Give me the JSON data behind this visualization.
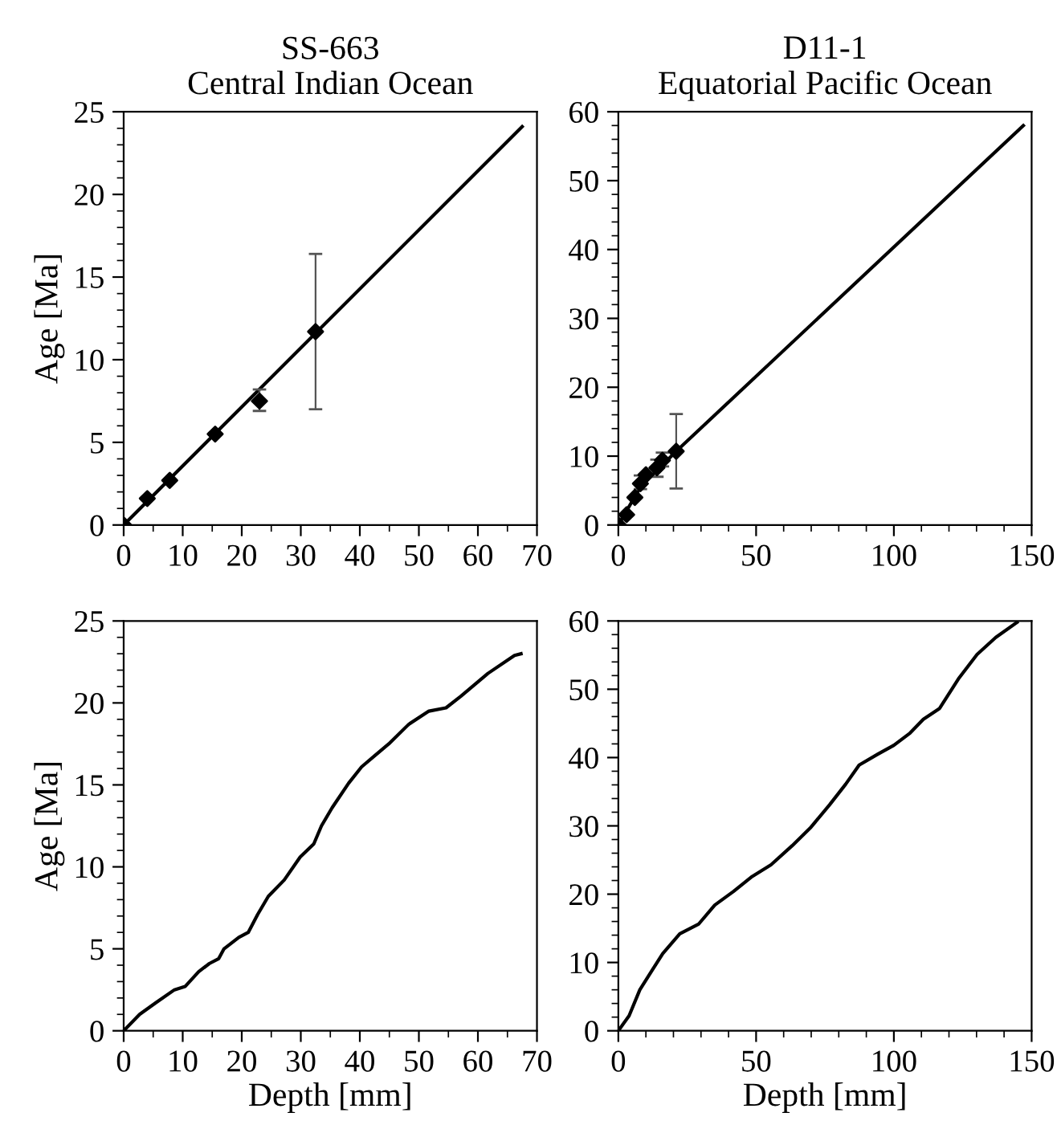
{
  "chart_data": [
    {
      "type": "scatter",
      "title": "SS-663\nCentral Indian Ocean",
      "ylabel": "Age [Ma]",
      "xlim": [
        0,
        70
      ],
      "ylim": [
        0,
        25
      ],
      "xticks": [
        0,
        {
          "value": 5,
          "label": null
        },
        10,
        {
          "value": 15,
          "label": null
        },
        20,
        {
          "value": 25,
          "label": null
        },
        30,
        {
          "value": 35,
          "label": null
        },
        40,
        {
          "value": 45,
          "label": null
        },
        50,
        {
          "value": 55,
          "label": null
        },
        60,
        {
          "value": 65,
          "label": null
        },
        70
      ],
      "yticks": [
        0,
        {
          "value": 1,
          "label": null
        },
        {
          "value": 2,
          "label": null
        },
        {
          "value": 3,
          "label": null
        },
        {
          "value": 4,
          "label": null
        },
        5,
        {
          "value": 6,
          "label": null
        },
        {
          "value": 7,
          "label": null
        },
        {
          "value": 8,
          "label": null
        },
        {
          "value": 9,
          "label": null
        },
        10,
        {
          "value": 11,
          "label": null
        },
        {
          "value": 12,
          "label": null
        },
        {
          "value": 13,
          "label": null
        },
        {
          "value": 14,
          "label": null
        },
        15,
        {
          "value": 16,
          "label": null
        },
        {
          "value": 17,
          "label": null
        },
        {
          "value": 18,
          "label": null
        },
        {
          "value": 19,
          "label": null
        },
        20,
        {
          "value": 21,
          "label": null
        },
        {
          "value": 22,
          "label": null
        },
        {
          "value": 23,
          "label": null
        },
        {
          "value": 24,
          "label": null
        },
        25
      ],
      "series": [
        {
          "type": "line",
          "color": "#000000",
          "x": [
            0,
            67.5
          ],
          "values": [
            0,
            24.1
          ]
        },
        {
          "type": "scatter",
          "marker": "diamond",
          "color": "#000000",
          "x": [
            0,
            4,
            7.8,
            15.5,
            23,
            32.5
          ],
          "values": [
            0,
            1.6,
            2.7,
            5.5,
            7.5,
            11.7
          ],
          "errors": [
            null,
            null,
            null,
            null,
            [
              6.9,
              8.2
            ],
            [
              7.0,
              16.4
            ]
          ]
        }
      ]
    },
    {
      "type": "scatter",
      "title": "D11-1\nEquatorial Pacific Ocean",
      "xlim": [
        0,
        150
      ],
      "ylim": [
        0,
        60
      ],
      "xticks": [
        0,
        {
          "value": 10,
          "label": null
        },
        {
          "value": 20,
          "label": null
        },
        {
          "value": 30,
          "label": null
        },
        {
          "value": 40,
          "label": null
        },
        50,
        {
          "value": 60,
          "label": null
        },
        {
          "value": 70,
          "label": null
        },
        {
          "value": 80,
          "label": null
        },
        {
          "value": 90,
          "label": null
        },
        100,
        {
          "value": 110,
          "label": null
        },
        {
          "value": 120,
          "label": null
        },
        {
          "value": 130,
          "label": null
        },
        {
          "value": 140,
          "label": null
        },
        150
      ],
      "yticks": [
        0,
        {
          "value": 2,
          "label": null
        },
        {
          "value": 4,
          "label": null
        },
        {
          "value": 6,
          "label": null
        },
        {
          "value": 8,
          "label": null
        },
        10,
        {
          "value": 12,
          "label": null
        },
        {
          "value": 14,
          "label": null
        },
        {
          "value": 16,
          "label": null
        },
        {
          "value": 18,
          "label": null
        },
        20,
        {
          "value": 22,
          "label": null
        },
        {
          "value": 24,
          "label": null
        },
        {
          "value": 26,
          "label": null
        },
        {
          "value": 28,
          "label": null
        },
        30,
        {
          "value": 32,
          "label": null
        },
        {
          "value": 34,
          "label": null
        },
        {
          "value": 36,
          "label": null
        },
        {
          "value": 38,
          "label": null
        },
        40,
        {
          "value": 42,
          "label": null
        },
        {
          "value": 44,
          "label": null
        },
        {
          "value": 46,
          "label": null
        },
        {
          "value": 48,
          "label": null
        },
        50,
        {
          "value": 52,
          "label": null
        },
        {
          "value": 54,
          "label": null
        },
        {
          "value": 56,
          "label": null
        },
        {
          "value": 58,
          "label": null
        },
        60
      ],
      "series": [
        {
          "type": "line",
          "color": "#000000",
          "x": [
            0,
            8,
            21,
            147
          ],
          "values": [
            0,
            5.5,
            10.7,
            58
          ]
        },
        {
          "type": "scatter",
          "marker": "diamond",
          "color": "#000000",
          "x": [
            0,
            3,
            6,
            8,
            10,
            14,
            16,
            21
          ],
          "values": [
            0,
            1.5,
            4,
            6,
            7.3,
            8.3,
            9.4,
            10.7
          ],
          "errors": [
            null,
            null,
            null,
            [
              5.2,
              7.2
            ],
            null,
            [
              7.0,
              9.5
            ],
            [
              8.5,
              10.5
            ],
            [
              5.3,
              16.1
            ]
          ]
        }
      ]
    },
    {
      "type": "line",
      "ylabel": "Age [Ma]",
      "xlabel": "Depth [mm]",
      "xlim": [
        0,
        70
      ],
      "ylim": [
        0,
        25
      ],
      "xticks": [
        0,
        {
          "value": 5,
          "label": null
        },
        10,
        {
          "value": 15,
          "label": null
        },
        20,
        {
          "value": 25,
          "label": null
        },
        30,
        {
          "value": 35,
          "label": null
        },
        40,
        {
          "value": 45,
          "label": null
        },
        50,
        {
          "value": 55,
          "label": null
        },
        60,
        {
          "value": 65,
          "label": null
        },
        70
      ],
      "yticks": [
        0,
        {
          "value": 1,
          "label": null
        },
        {
          "value": 2,
          "label": null
        },
        {
          "value": 3,
          "label": null
        },
        {
          "value": 4,
          "label": null
        },
        5,
        {
          "value": 6,
          "label": null
        },
        {
          "value": 7,
          "label": null
        },
        {
          "value": 8,
          "label": null
        },
        {
          "value": 9,
          "label": null
        },
        10,
        {
          "value": 11,
          "label": null
        },
        {
          "value": 12,
          "label": null
        },
        {
          "value": 13,
          "label": null
        },
        {
          "value": 14,
          "label": null
        },
        15,
        {
          "value": 16,
          "label": null
        },
        {
          "value": 17,
          "label": null
        },
        {
          "value": 18,
          "label": null
        },
        {
          "value": 19,
          "label": null
        },
        20,
        {
          "value": 21,
          "label": null
        },
        {
          "value": 22,
          "label": null
        },
        {
          "value": 23,
          "label": null
        },
        {
          "value": 24,
          "label": null
        },
        25
      ],
      "series": [
        {
          "color": "#000000",
          "x": [
            0,
            2.7,
            5.4,
            8.6,
            10.4,
            12.7,
            14.5,
            16.1,
            17.0,
            19.5,
            21.1,
            22.7,
            24.5,
            27.2,
            29.9,
            32.2,
            33.5,
            35.3,
            38.1,
            40.3,
            42.6,
            44.9,
            48.3,
            51.7,
            54.6,
            57.1,
            59.4,
            61.7,
            66.2,
            67.3
          ],
          "values": [
            0,
            1.0,
            1.7,
            2.5,
            2.7,
            3.6,
            4.1,
            4.4,
            5.0,
            5.7,
            6.0,
            7.1,
            8.2,
            9.2,
            10.6,
            11.4,
            12.5,
            13.6,
            15.1,
            16.1,
            16.8,
            17.5,
            18.7,
            19.5,
            19.7,
            20.4,
            21.1,
            21.8,
            22.9,
            23.0
          ]
        }
      ]
    },
    {
      "type": "line",
      "xlabel": "Depth [mm]",
      "xlim": [
        0,
        150
      ],
      "ylim": [
        0,
        60
      ],
      "xticks": [
        0,
        {
          "value": 10,
          "label": null
        },
        {
          "value": 20,
          "label": null
        },
        {
          "value": 30,
          "label": null
        },
        {
          "value": 40,
          "label": null
        },
        50,
        {
          "value": 60,
          "label": null
        },
        {
          "value": 70,
          "label": null
        },
        {
          "value": 80,
          "label": null
        },
        {
          "value": 90,
          "label": null
        },
        100,
        {
          "value": 110,
          "label": null
        },
        {
          "value": 120,
          "label": null
        },
        {
          "value": 130,
          "label": null
        },
        {
          "value": 140,
          "label": null
        },
        150
      ],
      "yticks": [
        0,
        {
          "value": 2,
          "label": null
        },
        {
          "value": 4,
          "label": null
        },
        {
          "value": 6,
          "label": null
        },
        {
          "value": 8,
          "label": null
        },
        10,
        {
          "value": 12,
          "label": null
        },
        {
          "value": 14,
          "label": null
        },
        {
          "value": 16,
          "label": null
        },
        {
          "value": 18,
          "label": null
        },
        20,
        {
          "value": 22,
          "label": null
        },
        {
          "value": 24,
          "label": null
        },
        {
          "value": 26,
          "label": null
        },
        {
          "value": 28,
          "label": null
        },
        30,
        {
          "value": 32,
          "label": null
        },
        {
          "value": 34,
          "label": null
        },
        {
          "value": 36,
          "label": null
        },
        {
          "value": 38,
          "label": null
        },
        40,
        {
          "value": 42,
          "label": null
        },
        {
          "value": 44,
          "label": null
        },
        {
          "value": 46,
          "label": null
        },
        {
          "value": 48,
          "label": null
        },
        50,
        {
          "value": 52,
          "label": null
        },
        {
          "value": 54,
          "label": null
        },
        {
          "value": 56,
          "label": null
        },
        {
          "value": 58,
          "label": null
        },
        60
      ],
      "series": [
        {
          "color": "#000000",
          "x": [
            0,
            3.9,
            7.8,
            11.7,
            16.1,
            22.3,
            29.1,
            35,
            41.8,
            48.6,
            55.4,
            63.1,
            69.9,
            76.7,
            82.5,
            87.4,
            94.2,
            100,
            105.9,
            110.7,
            116.6,
            123.4,
            130.2,
            137,
            144.7
          ],
          "values": [
            0,
            2.2,
            6.0,
            8.5,
            11.3,
            14.2,
            15.6,
            18.4,
            20.4,
            22.6,
            24.3,
            27.1,
            29.8,
            33.1,
            36.1,
            38.9,
            40.5,
            41.8,
            43.6,
            45.6,
            47.2,
            51.5,
            55.1,
            57.6,
            59.8
          ]
        }
      ]
    }
  ]
}
